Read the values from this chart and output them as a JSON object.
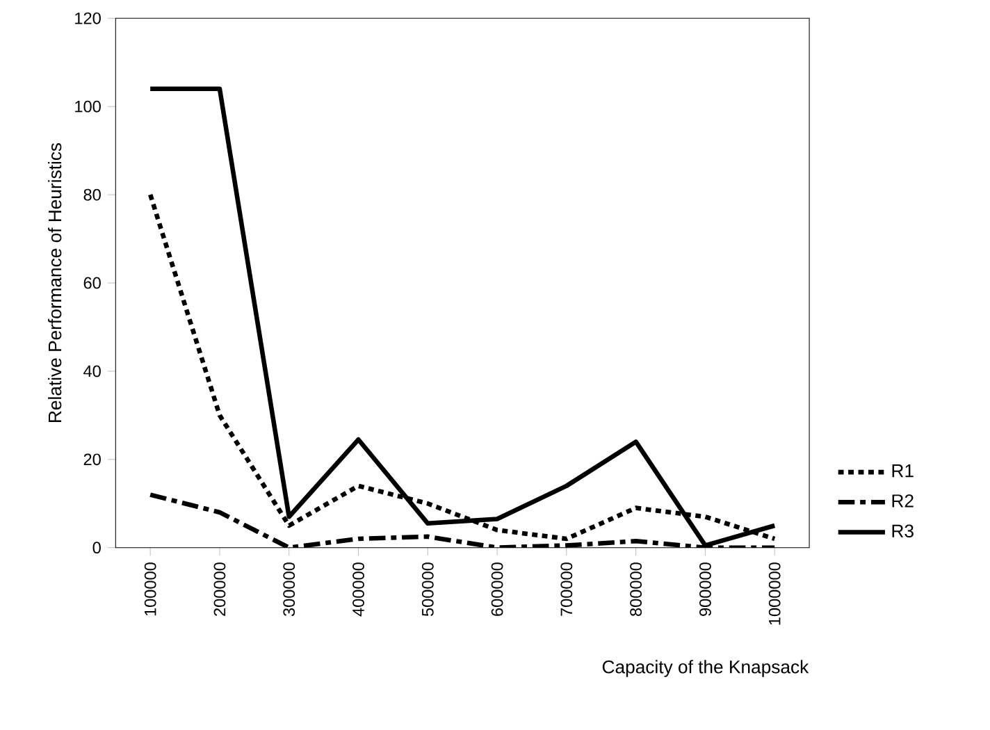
{
  "chart_data": {
    "type": "line",
    "xlabel": "Capacity of the Knapsack",
    "ylabel": "Relative Performance of Heuristics",
    "categories": [
      "100000",
      "200000",
      "300000",
      "400000",
      "500000",
      "600000",
      "700000",
      "800000",
      "900000",
      "1000000"
    ],
    "series": [
      {
        "name": "R1",
        "color": "#000000",
        "line_style": "dotted",
        "values": [
          80,
          30,
          5,
          14,
          10,
          4,
          2,
          9,
          7,
          2
        ]
      },
      {
        "name": "R2",
        "color": "#000000",
        "line_style": "dashed",
        "values": [
          12,
          8,
          0,
          2,
          2.5,
          0,
          0.5,
          1.5,
          0,
          0
        ]
      },
      {
        "name": "R3",
        "color": "#000000",
        "line_style": "solid",
        "values": [
          104,
          104,
          7,
          24.5,
          5.5,
          6.5,
          14,
          24,
          0.5,
          5
        ]
      }
    ],
    "ylim": [
      0,
      120
    ],
    "yticks": [
      0,
      20,
      40,
      60,
      80,
      100,
      120
    ],
    "grid": false,
    "legend": "right",
    "marker": "none"
  }
}
